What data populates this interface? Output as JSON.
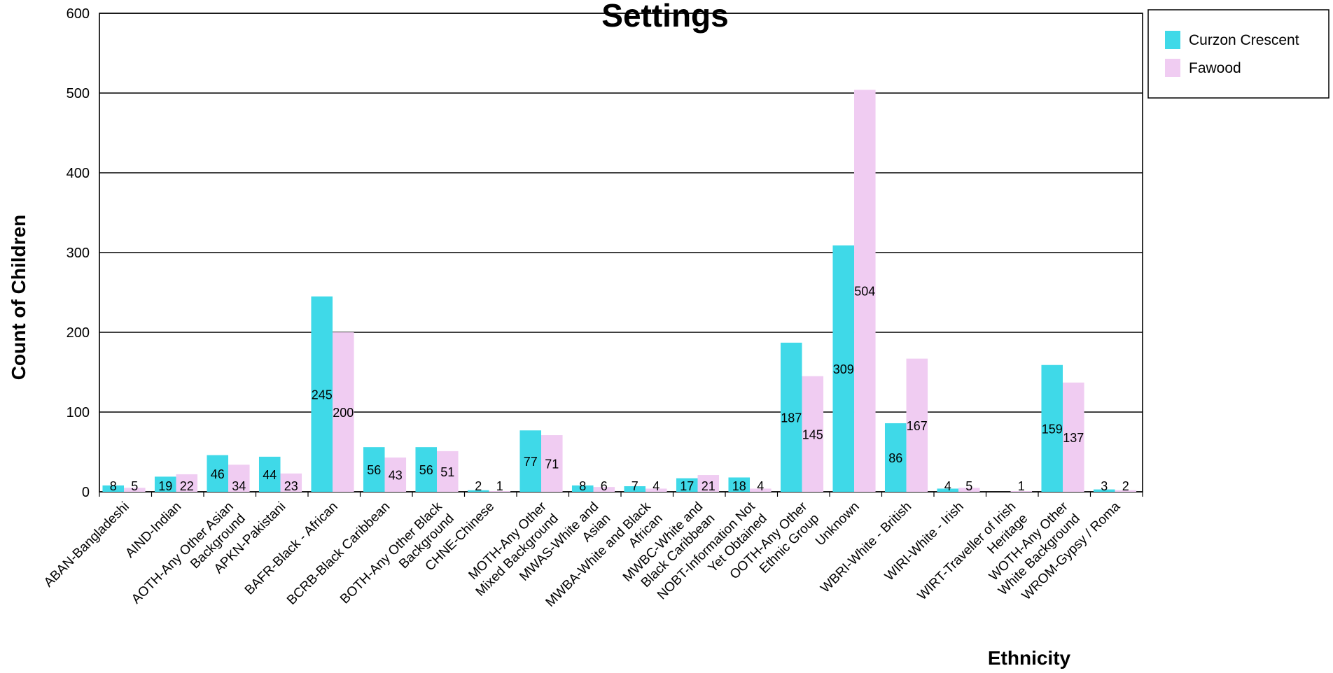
{
  "chart_data": {
    "type": "bar",
    "title": "Settings",
    "xlabel": "Ethnicity",
    "ylabel": "Count of Children",
    "ylim": [
      0,
      600
    ],
    "yticks": [
      0,
      100,
      200,
      300,
      400,
      500,
      600
    ],
    "grid": true,
    "legend_position": "top-right",
    "categories": [
      [
        "ABAN-Bangladeshi"
      ],
      [
        "AIND-Indian"
      ],
      [
        "AOTH-Any Other Asian",
        "Background"
      ],
      [
        "APKN-Pakistani"
      ],
      [
        "BAFR-Black - African"
      ],
      [
        "BCRB-Black Caribbean"
      ],
      [
        "BOTH-Any Other Black",
        "Background"
      ],
      [
        "CHNE-Chinese"
      ],
      [
        "MOTH-Any Other",
        "Mixed Background"
      ],
      [
        "MWAS-White and",
        "Asian"
      ],
      [
        "MWBA-White and Black",
        "African"
      ],
      [
        "MWBC-White and",
        "Black Caribbean"
      ],
      [
        "NOBT-Information Not",
        "Yet Obtained"
      ],
      [
        "OOTH-Any Other",
        "Ethnic Group"
      ],
      [
        "Unknown"
      ],
      [
        "WBRI-White - British"
      ],
      [
        "WIRI-White - Irish"
      ],
      [
        "WIRT-Traveller of Irish",
        "Heritage"
      ],
      [
        "WOTH-Any Other",
        "White Background"
      ],
      [
        "WROM-Gypsy / Roma"
      ]
    ],
    "series": [
      {
        "name": "Curzon Crescent",
        "color": "#3fd9e8",
        "values": [
          8,
          19,
          46,
          44,
          245,
          56,
          56,
          2,
          77,
          8,
          7,
          17,
          18,
          187,
          309,
          86,
          4,
          null,
          159,
          3
        ]
      },
      {
        "name": "Fawood",
        "color": "#f0ccf2",
        "values": [
          5,
          22,
          34,
          23,
          200,
          43,
          51,
          1,
          71,
          6,
          4,
          21,
          4,
          145,
          504,
          167,
          5,
          1,
          137,
          2
        ]
      }
    ]
  }
}
